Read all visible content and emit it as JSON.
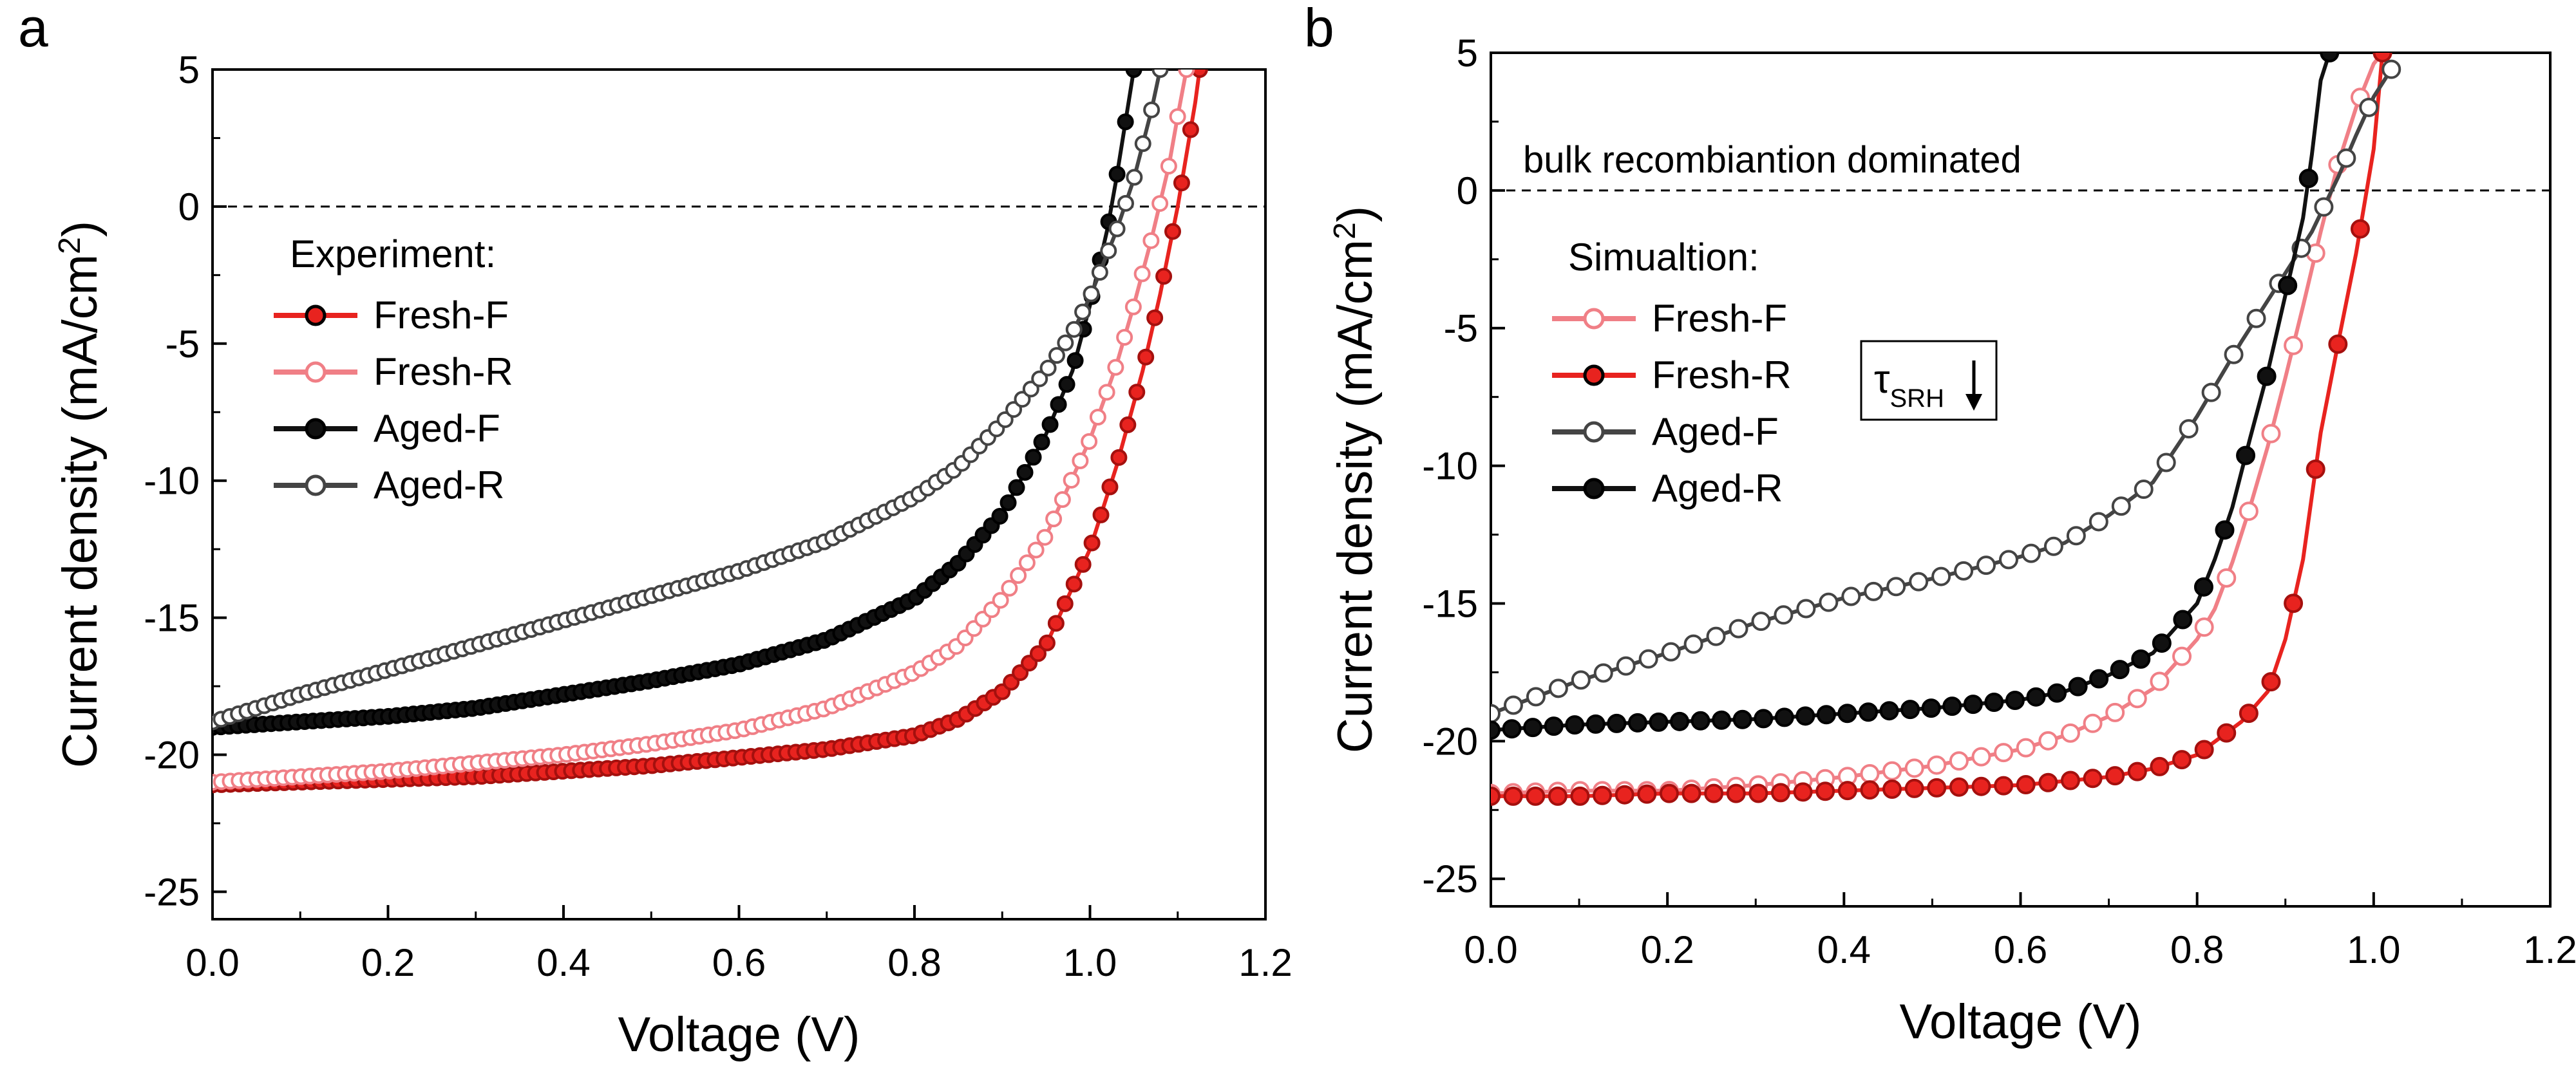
{
  "chart_data": [
    {
      "panel_label": "a",
      "type": "line",
      "xlabel": "Voltage (V)",
      "ylabel": "Current density (mA/cm",
      "ylabel_sup": "2",
      "ylabel_tail": ")",
      "xlim": [
        0.0,
        1.2
      ],
      "ylim": [
        -26,
        5
      ],
      "xticks": [
        "0.0",
        "0.2",
        "0.4",
        "0.6",
        "0.8",
        "1.0",
        "1.2"
      ],
      "yticks": [
        "5",
        "0",
        "-5",
        "-10",
        "-15",
        "-20",
        "-25"
      ],
      "zero_line": true,
      "legend_title": "Experiment:",
      "legend_position": "left",
      "series": [
        {
          "name": "Fresh-F",
          "color": "#e8231f",
          "marker": "filled",
          "x": [
            0,
            0.1,
            0.2,
            0.3,
            0.4,
            0.5,
            0.6,
            0.7,
            0.8,
            0.85,
            0.9,
            0.95,
            1.0,
            1.03,
            1.06,
            1.08,
            1.1,
            1.12,
            1.125
          ],
          "y": [
            -21.1,
            -21.0,
            -20.9,
            -20.8,
            -20.6,
            -20.4,
            -20.1,
            -19.8,
            -19.3,
            -18.7,
            -17.7,
            -16.0,
            -12.5,
            -9.5,
            -6.0,
            -3.2,
            0,
            3.8,
            5
          ]
        },
        {
          "name": "Fresh-R",
          "color": "#f07f86",
          "marker": "open",
          "x": [
            0,
            0.1,
            0.2,
            0.3,
            0.4,
            0.5,
            0.6,
            0.7,
            0.8,
            0.85,
            0.9,
            0.95,
            1.0,
            1.03,
            1.05,
            1.07,
            1.09,
            1.1,
            1.11
          ],
          "y": [
            -21.0,
            -20.8,
            -20.6,
            -20.3,
            -20.0,
            -19.6,
            -19.1,
            -18.3,
            -17.0,
            -16.0,
            -14.3,
            -12.0,
            -8.5,
            -5.8,
            -3.6,
            -1.2,
            1.5,
            3.3,
            5
          ]
        },
        {
          "name": "Aged-F",
          "color": "#111111",
          "marker": "filled",
          "x": [
            0,
            0.1,
            0.2,
            0.3,
            0.4,
            0.5,
            0.6,
            0.7,
            0.8,
            0.85,
            0.9,
            0.95,
            0.98,
            1.0,
            1.02,
            1.03,
            1.04,
            1.05
          ],
          "y": [
            -19.0,
            -18.8,
            -18.6,
            -18.3,
            -17.8,
            -17.3,
            -16.7,
            -15.8,
            -14.3,
            -13.0,
            -11.2,
            -8.3,
            -6.0,
            -3.6,
            -0.8,
            1.0,
            3.0,
            5
          ]
        },
        {
          "name": "Aged-R",
          "color": "#444444",
          "marker": "open",
          "x": [
            0,
            0.1,
            0.2,
            0.3,
            0.4,
            0.5,
            0.6,
            0.7,
            0.8,
            0.85,
            0.9,
            0.95,
            0.98,
            1.0,
            1.03,
            1.05,
            1.07,
            1.08
          ],
          "y": [
            -18.8,
            -17.8,
            -16.9,
            -16.0,
            -15.1,
            -14.2,
            -13.3,
            -12.2,
            -10.6,
            -9.5,
            -7.9,
            -6.0,
            -4.6,
            -3.3,
            -0.9,
            1.0,
            3.5,
            5
          ]
        }
      ]
    },
    {
      "panel_label": "b",
      "type": "line",
      "xlabel": "Voltage (V)",
      "ylabel": "Current density (mA/cm",
      "ylabel_sup": "2",
      "ylabel_tail": ")",
      "xlim": [
        0.0,
        1.2
      ],
      "ylim": [
        -26,
        5
      ],
      "xticks": [
        "0.0",
        "0.2",
        "0.4",
        "0.6",
        "0.8",
        "1.0",
        "1.2"
      ],
      "yticks": [
        "5",
        "0",
        "-5",
        "-10",
        "-15",
        "-20",
        "-25"
      ],
      "zero_line": true,
      "annotation": "bulk recombiantion dominated",
      "tau_label": "τ",
      "tau_sub": "SRH",
      "legend_title": "Simualtion:",
      "legend_position": "left",
      "series": [
        {
          "name": "Fresh-F",
          "color": "#f07f86",
          "marker": "open",
          "x": [
            0,
            0.1,
            0.2,
            0.3,
            0.4,
            0.5,
            0.6,
            0.65,
            0.7,
            0.75,
            0.8,
            0.82,
            0.84,
            0.86,
            0.88,
            0.9,
            0.92,
            0.94,
            0.96,
            0.98,
            1.0,
            1.01
          ],
          "y": [
            -21.9,
            -21.8,
            -21.8,
            -21.6,
            -21.3,
            -20.9,
            -20.3,
            -19.8,
            -19.1,
            -18.1,
            -16.3,
            -15.2,
            -13.5,
            -11.5,
            -9.3,
            -6.8,
            -4.2,
            -1.5,
            1.0,
            3.0,
            4.6,
            5
          ]
        },
        {
          "name": "Fresh-R",
          "color": "#e8231f",
          "marker": "filled",
          "x": [
            0,
            0.1,
            0.2,
            0.3,
            0.4,
            0.5,
            0.6,
            0.7,
            0.75,
            0.8,
            0.85,
            0.88,
            0.9,
            0.92,
            0.94,
            0.96,
            0.98,
            1.0,
            1.01
          ],
          "y": [
            -22.0,
            -22.0,
            -21.9,
            -21.9,
            -21.8,
            -21.7,
            -21.6,
            -21.3,
            -21.0,
            -20.5,
            -19.3,
            -18.2,
            -16.3,
            -13.4,
            -8.8,
            -5.5,
            -2.3,
            1.5,
            5
          ]
        },
        {
          "name": "Aged-F",
          "color": "#444444",
          "marker": "open",
          "x": [
            0,
            0.1,
            0.2,
            0.3,
            0.4,
            0.5,
            0.6,
            0.65,
            0.7,
            0.75,
            0.8,
            0.85,
            0.9,
            0.93,
            0.96,
            0.98,
            1.0,
            1.02
          ],
          "y": [
            -19.0,
            -17.8,
            -16.8,
            -15.7,
            -14.8,
            -14.1,
            -13.3,
            -12.8,
            -11.8,
            -10.6,
            -8.2,
            -5.5,
            -3.0,
            -1.5,
            0.5,
            2.0,
            3.4,
            4.4
          ]
        },
        {
          "name": "Aged-R",
          "color": "#111111",
          "marker": "filled",
          "x": [
            0,
            0.1,
            0.2,
            0.3,
            0.4,
            0.5,
            0.6,
            0.65,
            0.7,
            0.75,
            0.8,
            0.82,
            0.84,
            0.86,
            0.88,
            0.9,
            0.92,
            0.93,
            0.94,
            0.95
          ],
          "y": [
            -19.6,
            -19.4,
            -19.3,
            -19.2,
            -19.0,
            -18.8,
            -18.5,
            -18.2,
            -17.6,
            -16.8,
            -15.0,
            -13.4,
            -11.5,
            -9.0,
            -6.6,
            -3.8,
            -1.0,
            1.3,
            4.0,
            5
          ]
        }
      ]
    }
  ]
}
